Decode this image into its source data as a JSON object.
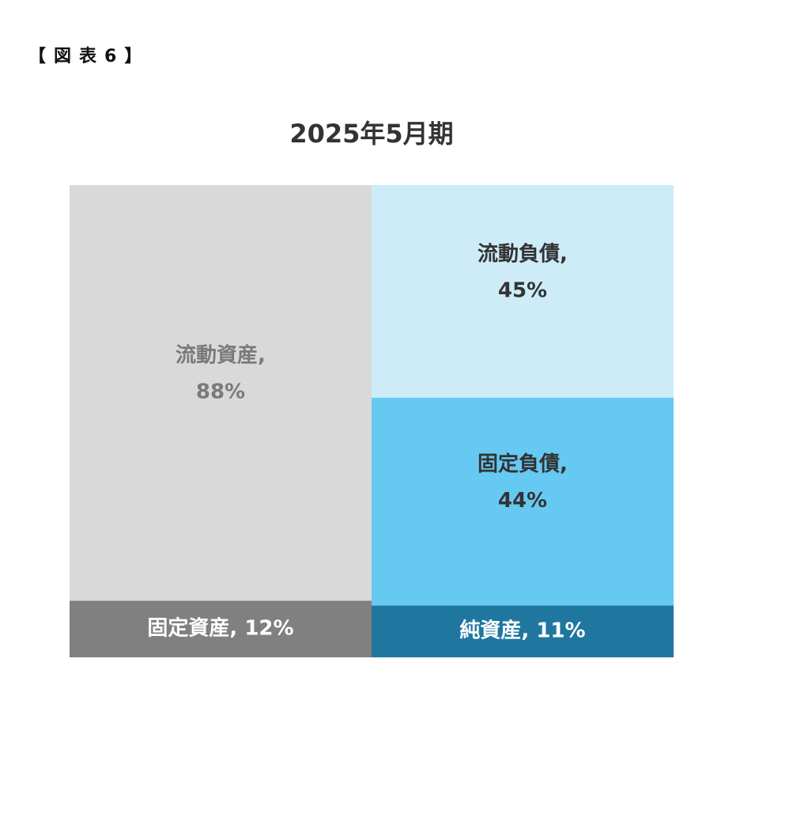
{
  "heading": "【図表6】",
  "chart_data": {
    "type": "stacked_bar",
    "title": "2025年5月期",
    "categories": [
      null,
      null
    ],
    "ylim": [
      0,
      100
    ],
    "series": [
      {
        "color": "#808080",
        "label_color": "#ffffff",
        "values": [
          12,
          null
        ],
        "value_labels": [
          "固定資産, 12%",
          null
        ]
      },
      {
        "color": "#d9d9d9",
        "label_color": "#7a7a7a",
        "values": [
          88,
          null
        ],
        "value_labels": [
          "流動資産, 88%",
          null
        ]
      },
      {
        "color": "#1f77a0",
        "label_color": "#ffffff",
        "values": [
          null,
          11
        ],
        "value_labels": [
          null,
          "純資産, 11%"
        ]
      },
      {
        "color": "#66c9f2",
        "label_color": "#333333",
        "values": [
          null,
          44
        ],
        "value_labels": [
          null,
          "固定負債, 44%"
        ]
      },
      {
        "color": "#cdecf8",
        "label_color": "#333333",
        "values": [
          null,
          45
        ],
        "value_labels": [
          null,
          "流動負債, 45%"
        ]
      }
    ]
  }
}
